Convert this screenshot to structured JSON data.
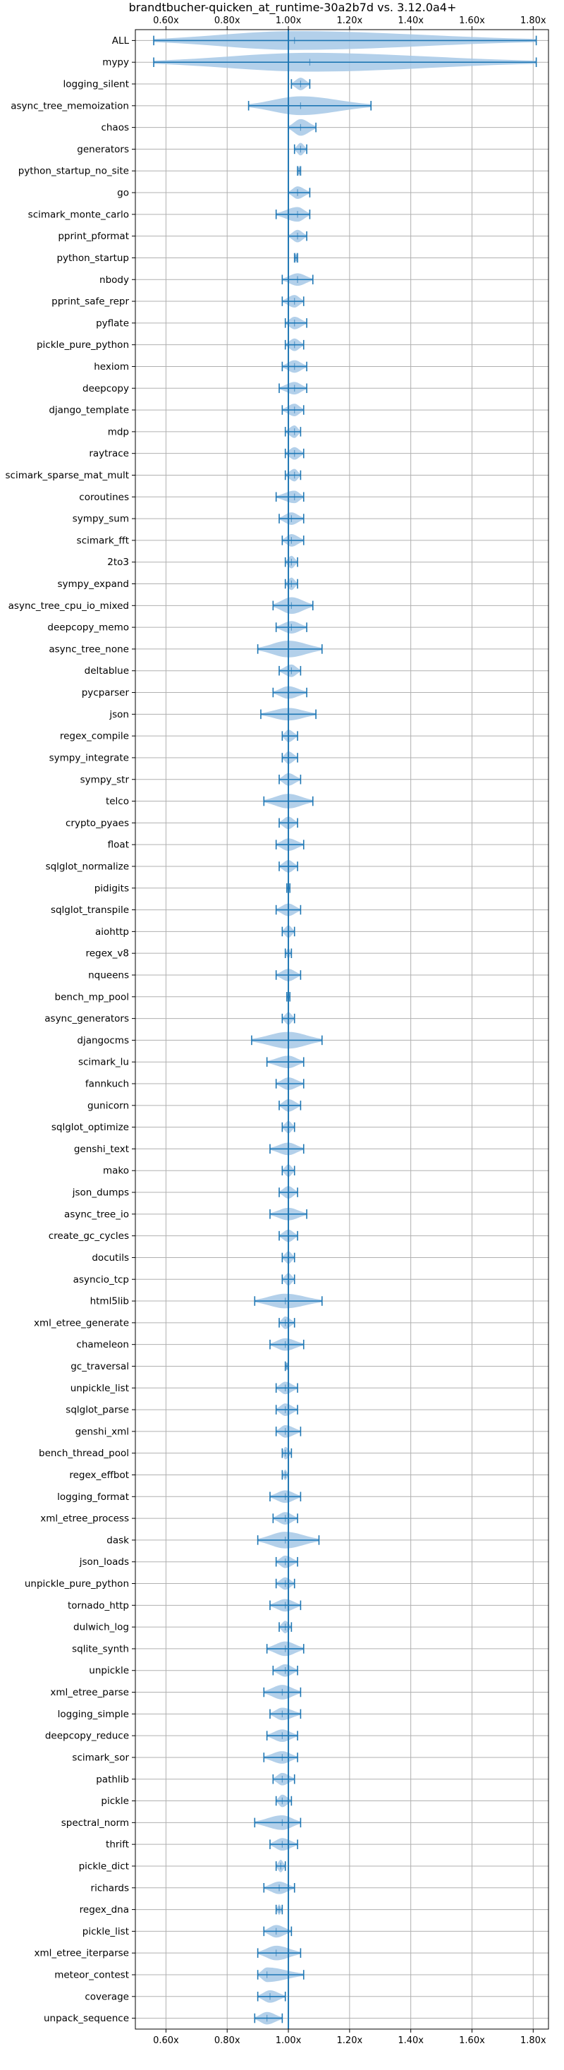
{
  "chart_data": {
    "type": "violin",
    "title": "brandtbucher-quicken_at_runtime-30a2b7d vs. 3.12.0a4+",
    "xlabel": "",
    "ylabel": "",
    "xlim": [
      0.5,
      1.85
    ],
    "x_ticks": [
      0.6,
      0.8,
      1.0,
      1.2,
      1.4,
      1.6,
      1.8
    ],
    "x_tick_labels": [
      "0.60x",
      "0.80x",
      "1.00x",
      "1.20x",
      "1.40x",
      "1.60x",
      "1.80x"
    ],
    "x_ticks_top": true,
    "x_ticks_bottom": true,
    "reference_line": 1.0,
    "grid": true,
    "colors": {
      "violin_fill": "#a6c8e6",
      "stroke": "#1f77b4",
      "grid": "#b0b0b0"
    },
    "series": [
      {
        "name": "ALL",
        "min": 0.56,
        "max": 1.81,
        "median": 1.02,
        "width": 0.9
      },
      {
        "name": "mypy",
        "min": 0.56,
        "max": 1.81,
        "median": 1.07,
        "width": 0.9
      },
      {
        "name": "logging_silent",
        "min": 1.01,
        "max": 1.07,
        "median": 1.04,
        "width": 0.6
      },
      {
        "name": "async_tree_memoization",
        "min": 0.87,
        "max": 1.27,
        "median": 1.04,
        "width": 0.9
      },
      {
        "name": "chaos",
        "min": 1.0,
        "max": 1.09,
        "median": 1.04,
        "width": 0.8
      },
      {
        "name": "generators",
        "min": 1.02,
        "max": 1.06,
        "median": 1.04,
        "width": 0.6
      },
      {
        "name": "python_startup_no_site",
        "min": 1.03,
        "max": 1.04,
        "median": 1.035,
        "width": 0.5
      },
      {
        "name": "go",
        "min": 1.0,
        "max": 1.07,
        "median": 1.03,
        "width": 0.6
      },
      {
        "name": "scimark_monte_carlo",
        "min": 0.96,
        "max": 1.07,
        "median": 1.03,
        "width": 0.7
      },
      {
        "name": "pprint_pformat",
        "min": 1.0,
        "max": 1.06,
        "median": 1.03,
        "width": 0.6
      },
      {
        "name": "python_startup",
        "min": 1.02,
        "max": 1.03,
        "median": 1.025,
        "width": 0.5
      },
      {
        "name": "nbody",
        "min": 0.98,
        "max": 1.08,
        "median": 1.03,
        "width": 0.6
      },
      {
        "name": "pprint_safe_repr",
        "min": 0.98,
        "max": 1.05,
        "median": 1.02,
        "width": 0.6
      },
      {
        "name": "pyflate",
        "min": 0.99,
        "max": 1.06,
        "median": 1.02,
        "width": 0.6
      },
      {
        "name": "pickle_pure_python",
        "min": 0.99,
        "max": 1.05,
        "median": 1.02,
        "width": 0.6
      },
      {
        "name": "hexiom",
        "min": 0.98,
        "max": 1.06,
        "median": 1.02,
        "width": 0.6
      },
      {
        "name": "deepcopy",
        "min": 0.97,
        "max": 1.06,
        "median": 1.02,
        "width": 0.6
      },
      {
        "name": "django_template",
        "min": 0.98,
        "max": 1.05,
        "median": 1.02,
        "width": 0.6
      },
      {
        "name": "mdp",
        "min": 0.99,
        "max": 1.04,
        "median": 1.02,
        "width": 0.6
      },
      {
        "name": "raytrace",
        "min": 0.99,
        "max": 1.05,
        "median": 1.02,
        "width": 0.6
      },
      {
        "name": "scimark_sparse_mat_mult",
        "min": 0.99,
        "max": 1.04,
        "median": 1.02,
        "width": 0.6
      },
      {
        "name": "coroutines",
        "min": 0.96,
        "max": 1.05,
        "median": 1.02,
        "width": 0.6
      },
      {
        "name": "sympy_sum",
        "min": 0.97,
        "max": 1.05,
        "median": 1.01,
        "width": 0.6
      },
      {
        "name": "scimark_fft",
        "min": 0.98,
        "max": 1.05,
        "median": 1.01,
        "width": 0.6
      },
      {
        "name": "2to3",
        "min": 0.99,
        "max": 1.03,
        "median": 1.01,
        "width": 0.6
      },
      {
        "name": "sympy_expand",
        "min": 0.99,
        "max": 1.03,
        "median": 1.01,
        "width": 0.6
      },
      {
        "name": "async_tree_cpu_io_mixed",
        "min": 0.95,
        "max": 1.08,
        "median": 1.01,
        "width": 0.8
      },
      {
        "name": "deepcopy_memo",
        "min": 0.96,
        "max": 1.06,
        "median": 1.01,
        "width": 0.6
      },
      {
        "name": "async_tree_none",
        "min": 0.9,
        "max": 1.11,
        "median": 1.0,
        "width": 0.8
      },
      {
        "name": "deltablue",
        "min": 0.97,
        "max": 1.04,
        "median": 1.01,
        "width": 0.6
      },
      {
        "name": "pycparser",
        "min": 0.95,
        "max": 1.06,
        "median": 1.0,
        "width": 0.6
      },
      {
        "name": "json",
        "min": 0.91,
        "max": 1.09,
        "median": 1.0,
        "width": 0.6
      },
      {
        "name": "regex_compile",
        "min": 0.98,
        "max": 1.03,
        "median": 1.0,
        "width": 0.6
      },
      {
        "name": "sympy_integrate",
        "min": 0.98,
        "max": 1.03,
        "median": 1.0,
        "width": 0.6
      },
      {
        "name": "sympy_str",
        "min": 0.97,
        "max": 1.04,
        "median": 1.0,
        "width": 0.6
      },
      {
        "name": "telco",
        "min": 0.92,
        "max": 1.08,
        "median": 1.0,
        "width": 0.7
      },
      {
        "name": "crypto_pyaes",
        "min": 0.97,
        "max": 1.03,
        "median": 1.0,
        "width": 0.6
      },
      {
        "name": "float",
        "min": 0.96,
        "max": 1.05,
        "median": 1.0,
        "width": 0.6
      },
      {
        "name": "sqlglot_normalize",
        "min": 0.97,
        "max": 1.03,
        "median": 1.0,
        "width": 0.6
      },
      {
        "name": "pidigits",
        "min": 0.995,
        "max": 1.005,
        "median": 1.0,
        "width": 0.4
      },
      {
        "name": "sqlglot_transpile",
        "min": 0.96,
        "max": 1.04,
        "median": 1.0,
        "width": 0.6
      },
      {
        "name": "aiohttp",
        "min": 0.98,
        "max": 1.02,
        "median": 1.0,
        "width": 0.6
      },
      {
        "name": "regex_v8",
        "min": 0.99,
        "max": 1.01,
        "median": 1.0,
        "width": 0.5
      },
      {
        "name": "nqueens",
        "min": 0.96,
        "max": 1.04,
        "median": 1.0,
        "width": 0.6
      },
      {
        "name": "bench_mp_pool",
        "min": 0.995,
        "max": 1.005,
        "median": 1.0,
        "width": 0.4
      },
      {
        "name": "async_generators",
        "min": 0.98,
        "max": 1.02,
        "median": 1.0,
        "width": 0.6
      },
      {
        "name": "djangocms",
        "min": 0.88,
        "max": 1.11,
        "median": 1.0,
        "width": 0.8
      },
      {
        "name": "scimark_lu",
        "min": 0.93,
        "max": 1.05,
        "median": 1.0,
        "width": 0.6
      },
      {
        "name": "fannkuch",
        "min": 0.96,
        "max": 1.05,
        "median": 1.0,
        "width": 0.6
      },
      {
        "name": "gunicorn",
        "min": 0.97,
        "max": 1.04,
        "median": 1.0,
        "width": 0.6
      },
      {
        "name": "sqlglot_optimize",
        "min": 0.98,
        "max": 1.02,
        "median": 1.0,
        "width": 0.6
      },
      {
        "name": "genshi_text",
        "min": 0.94,
        "max": 1.05,
        "median": 1.0,
        "width": 0.6
      },
      {
        "name": "mako",
        "min": 0.98,
        "max": 1.02,
        "median": 1.0,
        "width": 0.6
      },
      {
        "name": "json_dumps",
        "min": 0.97,
        "max": 1.03,
        "median": 1.0,
        "width": 0.6
      },
      {
        "name": "async_tree_io",
        "min": 0.94,
        "max": 1.06,
        "median": 1.0,
        "width": 0.6
      },
      {
        "name": "create_gc_cycles",
        "min": 0.97,
        "max": 1.03,
        "median": 1.0,
        "width": 0.6
      },
      {
        "name": "docutils",
        "min": 0.98,
        "max": 1.02,
        "median": 1.0,
        "width": 0.6
      },
      {
        "name": "asyncio_tcp",
        "min": 0.98,
        "max": 1.02,
        "median": 1.0,
        "width": 0.6
      },
      {
        "name": "html5lib",
        "min": 0.89,
        "max": 1.11,
        "median": 0.99,
        "width": 0.7
      },
      {
        "name": "xml_etree_generate",
        "min": 0.97,
        "max": 1.02,
        "median": 0.99,
        "width": 0.6
      },
      {
        "name": "chameleon",
        "min": 0.94,
        "max": 1.05,
        "median": 0.99,
        "width": 0.6
      },
      {
        "name": "gc_traversal",
        "min": 0.99,
        "max": 1.0,
        "median": 0.995,
        "width": 0.4
      },
      {
        "name": "unpickle_list",
        "min": 0.96,
        "max": 1.03,
        "median": 0.99,
        "width": 0.6
      },
      {
        "name": "sqlglot_parse",
        "min": 0.96,
        "max": 1.03,
        "median": 0.99,
        "width": 0.6
      },
      {
        "name": "genshi_xml",
        "min": 0.96,
        "max": 1.04,
        "median": 0.99,
        "width": 0.6
      },
      {
        "name": "bench_thread_pool",
        "min": 0.98,
        "max": 1.01,
        "median": 0.99,
        "width": 0.6
      },
      {
        "name": "regex_effbot",
        "min": 0.98,
        "max": 1.0,
        "median": 0.99,
        "width": 0.5
      },
      {
        "name": "logging_format",
        "min": 0.94,
        "max": 1.04,
        "median": 0.99,
        "width": 0.6
      },
      {
        "name": "xml_etree_process",
        "min": 0.95,
        "max": 1.03,
        "median": 0.99,
        "width": 0.6
      },
      {
        "name": "dask",
        "min": 0.9,
        "max": 1.1,
        "median": 0.99,
        "width": 0.8
      },
      {
        "name": "json_loads",
        "min": 0.96,
        "max": 1.03,
        "median": 0.99,
        "width": 0.6
      },
      {
        "name": "unpickle_pure_python",
        "min": 0.96,
        "max": 1.02,
        "median": 0.99,
        "width": 0.6
      },
      {
        "name": "tornado_http",
        "min": 0.94,
        "max": 1.04,
        "median": 0.99,
        "width": 0.6
      },
      {
        "name": "dulwich_log",
        "min": 0.97,
        "max": 1.01,
        "median": 0.99,
        "width": 0.6
      },
      {
        "name": "sqlite_synth",
        "min": 0.93,
        "max": 1.05,
        "median": 0.99,
        "width": 0.7
      },
      {
        "name": "unpickle",
        "min": 0.95,
        "max": 1.03,
        "median": 0.99,
        "width": 0.6
      },
      {
        "name": "xml_etree_parse",
        "min": 0.92,
        "max": 1.04,
        "median": 0.98,
        "width": 0.7
      },
      {
        "name": "logging_simple",
        "min": 0.94,
        "max": 1.04,
        "median": 0.98,
        "width": 0.6
      },
      {
        "name": "deepcopy_reduce",
        "min": 0.93,
        "max": 1.03,
        "median": 0.98,
        "width": 0.6
      },
      {
        "name": "scimark_sor",
        "min": 0.92,
        "max": 1.03,
        "median": 0.98,
        "width": 0.6
      },
      {
        "name": "pathlib",
        "min": 0.95,
        "max": 1.02,
        "median": 0.98,
        "width": 0.6
      },
      {
        "name": "pickle",
        "min": 0.96,
        "max": 1.01,
        "median": 0.98,
        "width": 0.6
      },
      {
        "name": "spectral_norm",
        "min": 0.89,
        "max": 1.04,
        "median": 0.98,
        "width": 0.7
      },
      {
        "name": "thrift",
        "min": 0.94,
        "max": 1.03,
        "median": 0.98,
        "width": 0.6
      },
      {
        "name": "pickle_dict",
        "min": 0.96,
        "max": 0.99,
        "median": 0.975,
        "width": 0.6
      },
      {
        "name": "richards",
        "min": 0.92,
        "max": 1.02,
        "median": 0.97,
        "width": 0.6
      },
      {
        "name": "regex_dna",
        "min": 0.96,
        "max": 0.98,
        "median": 0.97,
        "width": 0.5
      },
      {
        "name": "pickle_list",
        "min": 0.92,
        "max": 1.01,
        "median": 0.96,
        "width": 0.6
      },
      {
        "name": "xml_etree_iterparse",
        "min": 0.9,
        "max": 1.04,
        "median": 0.96,
        "width": 0.7
      },
      {
        "name": "meteor_contest",
        "min": 0.9,
        "max": 1.05,
        "median": 0.93,
        "width": 0.7
      },
      {
        "name": "coverage",
        "min": 0.9,
        "max": 0.99,
        "median": 0.94,
        "width": 0.6
      },
      {
        "name": "unpack_sequence",
        "min": 0.89,
        "max": 0.98,
        "median": 0.93,
        "width": 0.6
      }
    ]
  }
}
